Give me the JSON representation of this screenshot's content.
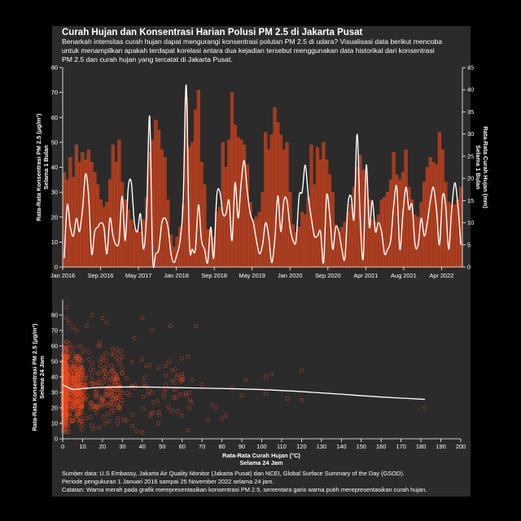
{
  "header": {
    "title": "Curah Hujan dan Konsentrasi Harian Polusi PM 2.5 di Jakarta Pusat",
    "subtitle": "Benarkah intensitas curah hujan dapat mengurangi konsentrasi polutan PM 2.5 di udara? Visualisasi data berikut mencoba untuk menampilkan apakah terdapat korelasi antara dua kejadian tersebut menggunakan data historikal dari konsentrasi PM 2.5 dan curah hujan yang tercatat di Jakarta Pusat."
  },
  "footer": {
    "line1": "Sumber data: U.S Embassy, Jakarta Air Quality Monitor (Jakarta Pusat) dan NCEI, Global Surface Summary of the Day (GSOD).",
    "line2": "Periode pengukuran 1 Januari 2016 sampai 25 November 2022 selama 24 jam.",
    "line3": "Catatan: Warna merah pada grafik merepresentasikan konsentrasi PM 2.5, sementara garis warna putih merepresentasikan curah hujan."
  },
  "colors": {
    "bar": "#a33a1e",
    "bar_edge": "#c2502a",
    "line": "#ffffff",
    "scatter": "#e8491d",
    "trend": "#ffffff",
    "background": "#2b2b2b"
  },
  "chart_data": [
    {
      "type": "bar",
      "title": "",
      "xlabel": "",
      "ylabel": "Rata-Rata Konsentrasi PM 2.5 (μg/m³) Selama 1 Bulan",
      "ylabel_lines": [
        "Rata-Rata Konsentrasi PM 2.5 (μg/m³)",
        "Selama 1 Bulan"
      ],
      "y2label": "Rata-Rata Curah Hujan (mm) Selama 1 Bulan",
      "y2label_lines": [
        "Rata-Rata Curah Hujan (mm)",
        "Selama 1 Bulan"
      ],
      "ylim": [
        0,
        80
      ],
      "y2lim": [
        0,
        45
      ],
      "yticks": [
        0,
        10,
        20,
        30,
        40,
        50,
        60,
        70,
        80
      ],
      "y2ticks": [
        0,
        5,
        10,
        15,
        20,
        25,
        30,
        35,
        40,
        45
      ],
      "xticks": [
        "Jan 2016",
        "Sep 2016",
        "May 2017",
        "Jan 2018",
        "Sep 2018",
        "May 2019",
        "Jan 2020",
        "Sep 2020",
        "Apr 2021",
        "Aug 2021",
        "Apr 2022"
      ],
      "series": [
        {
          "kind": "bar",
          "values": [
            38,
            35,
            44,
            36,
            49,
            42,
            46,
            43,
            47,
            42,
            38,
            33,
            27,
            24,
            26,
            35,
            49,
            42,
            51,
            34,
            27,
            23,
            19,
            15,
            15,
            14,
            19,
            28,
            46,
            51,
            59,
            55,
            47,
            44,
            27,
            13,
            8,
            12,
            16,
            25,
            68,
            48,
            50,
            63,
            71,
            42,
            33,
            15,
            15,
            12,
            22,
            24,
            50,
            40,
            51,
            70,
            57,
            52,
            51,
            49,
            41,
            26,
            19,
            20,
            22,
            30,
            54,
            47,
            53,
            64,
            58,
            53,
            47,
            50,
            30,
            17,
            14,
            16,
            22,
            21,
            28,
            49,
            33,
            48,
            43,
            50,
            43,
            37,
            30,
            17,
            14,
            16,
            18,
            22,
            25,
            32,
            40,
            45,
            39,
            36,
            27,
            19,
            18,
            21,
            27,
            28,
            30,
            35,
            46,
            37,
            35,
            38,
            47,
            32,
            27,
            21,
            20,
            26,
            34,
            40,
            44,
            42,
            41,
            54,
            47,
            34,
            26,
            25,
            25,
            27,
            32
          ]
        },
        {
          "kind": "line",
          "axis": "right",
          "values": [
            2,
            14,
            9,
            7,
            11,
            8,
            13,
            21,
            16,
            3,
            8,
            9,
            10,
            9,
            3,
            11,
            7,
            5,
            6,
            16,
            6,
            18,
            19,
            10,
            8,
            12,
            4,
            12,
            34,
            2,
            3,
            4,
            10,
            11,
            9,
            3,
            1,
            3,
            6,
            15,
            41,
            6,
            4,
            4,
            14,
            6,
            4,
            1,
            9,
            2,
            16,
            17,
            12,
            12,
            15,
            6,
            19,
            11,
            19,
            24,
            17,
            12,
            10,
            6,
            3,
            5,
            10,
            7,
            1,
            6,
            16,
            8,
            15,
            15,
            9,
            6,
            6,
            16,
            17,
            23,
            16,
            11,
            7,
            7,
            8,
            1,
            16,
            12,
            4,
            9,
            8,
            4,
            2,
            14,
            16,
            11,
            30,
            11,
            2,
            23,
            9,
            15,
            8,
            10,
            8,
            3,
            4,
            6,
            14,
            18,
            4,
            12,
            18,
            13,
            14,
            5,
            5,
            11,
            7,
            10,
            15,
            18,
            13,
            5,
            16,
            14,
            4,
            13,
            19,
            14,
            5
          ]
        }
      ]
    },
    {
      "type": "scatter",
      "title": "",
      "xlabel": "Rata-Rata Curah Hujan (°C) Selama 24 Jam",
      "xlabel_lines": [
        "Rata-Rata Curah Hujan (°C)",
        "Selama 24 Jam"
      ],
      "ylabel": "Rata-Rata Konsentrasi PM 2.5 (μg/m³) Selama 24 Jam",
      "ylabel_lines": [
        "Rata-Rata Konsentrasi PM 2.5 (μg/m³)",
        "Selama 24 Jam"
      ],
      "xlim": [
        0,
        200
      ],
      "ylim": [
        0,
        90
      ],
      "xticks": [
        0,
        10,
        20,
        30,
        40,
        50,
        60,
        70,
        80,
        90,
        100,
        110,
        120,
        130,
        140,
        150,
        160,
        170,
        180,
        190,
        200
      ],
      "yticks": [
        0,
        10,
        20,
        30,
        40,
        50,
        60,
        70,
        80
      ],
      "trend": [
        [
          0,
          35
        ],
        [
          5,
          32
        ],
        [
          10,
          32.5
        ],
        [
          20,
          33.3
        ],
        [
          40,
          33.5
        ],
        [
          60,
          33
        ],
        [
          80,
          32.5
        ],
        [
          100,
          31.8
        ],
        [
          120,
          30.5
        ],
        [
          140,
          28.8
        ],
        [
          160,
          27
        ],
        [
          182,
          25.5
        ]
      ],
      "highlight_points": [
        [
          2,
          85
        ],
        [
          2,
          78
        ],
        [
          3,
          75
        ],
        [
          5,
          72
        ],
        [
          7,
          70
        ],
        [
          12,
          73
        ],
        [
          15,
          80
        ],
        [
          20,
          78
        ],
        [
          22,
          75
        ],
        [
          36,
          65
        ],
        [
          40,
          78
        ],
        [
          45,
          70
        ],
        [
          54,
          73
        ],
        [
          67,
          73
        ],
        [
          120,
          44
        ],
        [
          105,
          42
        ],
        [
          102,
          40
        ],
        [
          92,
          38
        ],
        [
          85,
          33
        ],
        [
          90,
          28
        ],
        [
          102,
          29
        ],
        [
          113,
          26
        ],
        [
          120,
          25
        ],
        [
          182,
          20
        ],
        [
          77,
          20
        ],
        [
          73,
          12
        ],
        [
          60,
          15
        ],
        [
          55,
          18
        ],
        [
          48,
          10
        ],
        [
          45,
          17
        ],
        [
          40,
          4
        ],
        [
          35,
          8
        ],
        [
          32,
          12
        ],
        [
          42,
          47
        ],
        [
          48,
          46
        ],
        [
          55,
          44
        ],
        [
          60,
          42
        ],
        [
          65,
          38
        ],
        [
          70,
          35
        ],
        [
          75,
          22
        ],
        [
          80,
          13
        ],
        [
          82,
          15
        ],
        [
          30,
          53
        ],
        [
          25,
          58
        ],
        [
          27,
          52
        ],
        [
          18,
          60
        ]
      ]
    }
  ]
}
